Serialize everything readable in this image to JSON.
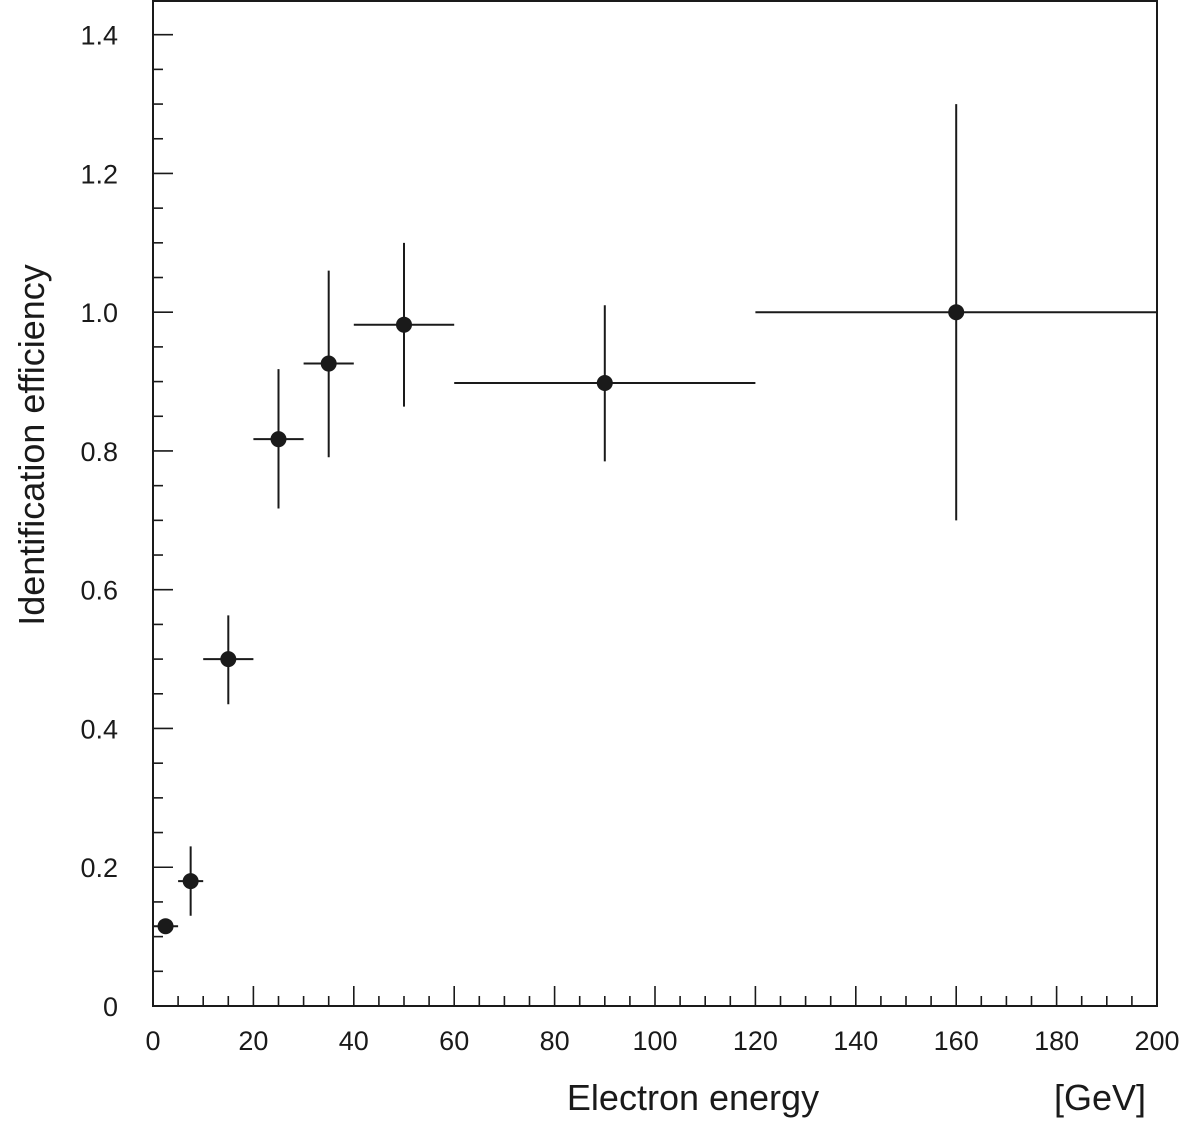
{
  "chart_data": {
    "type": "scatter",
    "xlabel": "Electron energy",
    "xunit": "[GeV]",
    "ylabel": "Identification efficiency",
    "xlim": [
      0,
      200
    ],
    "ylim": [
      0,
      1.45
    ],
    "x_ticks": [
      0,
      20,
      40,
      60,
      80,
      100,
      120,
      140,
      160,
      180,
      200
    ],
    "x_tick_labels": [
      "0",
      "20",
      "40",
      "60",
      "80",
      "100",
      "120",
      "140",
      "160",
      "180",
      "200"
    ],
    "y_ticks": [
      0,
      0.2,
      0.4,
      0.6,
      0.8,
      1.0,
      1.2,
      1.4
    ],
    "y_tick_labels": [
      "0",
      "0.2",
      "0.4",
      "0.6",
      "0.8",
      "1.0",
      "1.2",
      "1.4"
    ],
    "grid": false,
    "legend": "none",
    "marker_color": "#1a1a1a",
    "points": [
      {
        "x": 2.5,
        "y": 0.115,
        "x_low": 0,
        "x_high": 5,
        "y_low": 0.115,
        "y_high": 0.115
      },
      {
        "x": 7.5,
        "y": 0.18,
        "x_low": 5,
        "x_high": 10,
        "y_low": 0.13,
        "y_high": 0.23
      },
      {
        "x": 15,
        "y": 0.5,
        "x_low": 10,
        "x_high": 20,
        "y_low": 0.435,
        "y_high": 0.563
      },
      {
        "x": 25,
        "y": 0.817,
        "x_low": 20,
        "x_high": 30,
        "y_low": 0.717,
        "y_high": 0.918
      },
      {
        "x": 35,
        "y": 0.926,
        "x_low": 30,
        "x_high": 40,
        "y_low": 0.791,
        "y_high": 1.06
      },
      {
        "x": 50,
        "y": 0.982,
        "x_low": 40,
        "x_high": 60,
        "y_low": 0.864,
        "y_high": 1.1
      },
      {
        "x": 90,
        "y": 0.898,
        "x_low": 60,
        "x_high": 120,
        "y_low": 0.785,
        "y_high": 1.01
      },
      {
        "x": 160,
        "y": 1.0,
        "x_low": 120,
        "x_high": 200,
        "y_low": 0.7,
        "y_high": 1.3
      }
    ]
  }
}
